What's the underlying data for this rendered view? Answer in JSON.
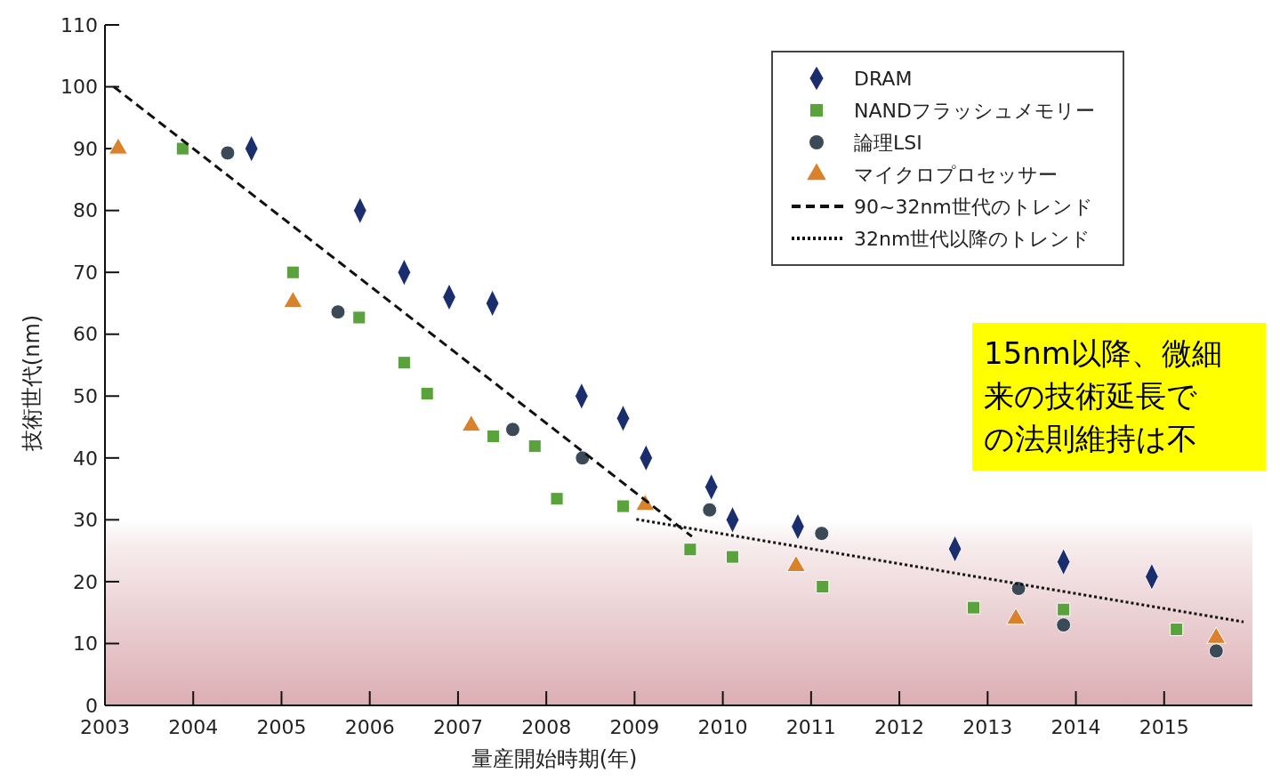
{
  "chart_data": {
    "type": "scatter",
    "xlabel": "量産開始時期(年)",
    "ylabel": "技術世代(nm)",
    "xlim": [
      2003,
      2016
    ],
    "xticks": [
      2003,
      2004,
      2005,
      2006,
      2007,
      2008,
      2009,
      2010,
      2011,
      2012,
      2013,
      2014,
      2015
    ],
    "ylim": [
      0,
      110
    ],
    "yticks": [
      0,
      10,
      20,
      30,
      40,
      50,
      60,
      70,
      80,
      90,
      100,
      110
    ],
    "grid": false,
    "legend": "top right",
    "bands": [
      {
        "axis": "y",
        "from": 0,
        "to": 30,
        "color": "#dcaeb3"
      }
    ],
    "annotations": [
      "15nm以降、微細",
      "来の技術延長で",
      "の法則維持は不"
    ],
    "series": [
      {
        "name": "DRAM",
        "type": "scatter",
        "marker": "diamond",
        "color": "#1a2e6e",
        "x": [
          2004.66,
          2005.89,
          2006.39,
          2006.9,
          2007.39,
          2008.4,
          2008.87,
          2009.13,
          2009.87,
          2010.11,
          2010.85,
          2012.63,
          2013.86,
          2014.86
        ],
        "values": [
          90,
          80,
          70,
          66,
          65,
          50,
          46.4,
          40,
          35.3,
          30,
          28.9,
          25.3,
          23.2,
          20.8
        ]
      },
      {
        "name": "NANDフラッシュメモリー",
        "type": "scatter",
        "marker": "square",
        "color": "#5aa33c",
        "x": [
          2003.88,
          2005.13,
          2005.88,
          2006.39,
          2006.65,
          2007.4,
          2007.87,
          2008.12,
          2008.87,
          2009.63,
          2010.11,
          2011.13,
          2012.84,
          2013.86,
          2015.14
        ],
        "values": [
          90,
          70,
          62.7,
          55.4,
          50.4,
          43.5,
          41.9,
          33.4,
          32.2,
          25.2,
          24,
          19.2,
          15.8,
          15.5,
          12.3
        ]
      },
      {
        "name": "論理LSI",
        "type": "scatter",
        "marker": "circle",
        "color": "#3c4a58",
        "x": [
          2004.39,
          2005.64,
          2007.62,
          2008.41,
          2009.85,
          2011.12,
          2013.35,
          2013.86,
          2015.59
        ],
        "values": [
          89.3,
          63.6,
          44.6,
          40,
          31.6,
          27.8,
          18.9,
          13,
          8.8
        ]
      },
      {
        "name": "マイクロプロセッサー",
        "type": "scatter",
        "marker": "triangle",
        "color": "#d9822b",
        "x": [
          2003.15,
          2005.13,
          2007.15,
          2009.12,
          2010.83,
          2013.32,
          2015.59
        ],
        "values": [
          90,
          65.2,
          45.2,
          32.4,
          22.5,
          14,
          10.9
        ]
      },
      {
        "name": "90~32nm世代のトレンド",
        "type": "line",
        "line_style": "dashed",
        "marker": "none",
        "color": "#111111",
        "x": [
          2003.1,
          2009.65
        ],
        "values": [
          100,
          27.3
        ]
      },
      {
        "name": "32nm世代以降のトレンド",
        "type": "line",
        "line_style": "dotted",
        "marker": "none",
        "color": "#111111",
        "x": [
          2009.02,
          2015.9
        ],
        "values": [
          30.1,
          13.5
        ]
      }
    ]
  }
}
